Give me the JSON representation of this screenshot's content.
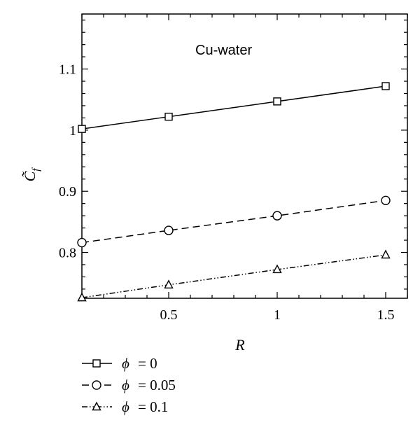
{
  "chart_data": {
    "type": "line",
    "title": "",
    "annotation": "Cu-water",
    "xlabel": "R",
    "ylabel": "C̃",
    "ylabel_subscript": "f",
    "xlim": [
      0.1,
      1.6
    ],
    "ylim": [
      0.725,
      1.19
    ],
    "x_ticks": [
      0.5,
      1,
      1.5
    ],
    "x_tick_labels": [
      "0.5",
      "1",
      "1.5"
    ],
    "y_ticks": [
      0.8,
      0.9,
      1.0,
      1.1
    ],
    "y_tick_labels": [
      "0.8",
      "0.9",
      "1",
      "1.1"
    ],
    "grid": false,
    "legend_position": "below",
    "series": [
      {
        "name": "ϕ = 0",
        "legend_symbol": "ϕ",
        "legend_value": "= 0",
        "marker": "square",
        "line_style": "solid",
        "x": [
          0.1,
          0.5,
          1,
          1.5
        ],
        "y": [
          1.002,
          1.022,
          1.047,
          1.072
        ]
      },
      {
        "name": "ϕ = 0.05",
        "legend_symbol": "ϕ",
        "legend_value": "= 0.05",
        "marker": "circle",
        "line_style": "dashed",
        "x": [
          0.1,
          0.5,
          1,
          1.5
        ],
        "y": [
          0.816,
          0.836,
          0.86,
          0.885
        ]
      },
      {
        "name": "ϕ = 0.1",
        "legend_symbol": "ϕ",
        "legend_value": "= 0.1",
        "marker": "triangle",
        "line_style": "dashdotdot",
        "x": [
          0.1,
          0.5,
          1,
          1.5
        ],
        "y": [
          0.726,
          0.747,
          0.772,
          0.796
        ]
      }
    ]
  }
}
